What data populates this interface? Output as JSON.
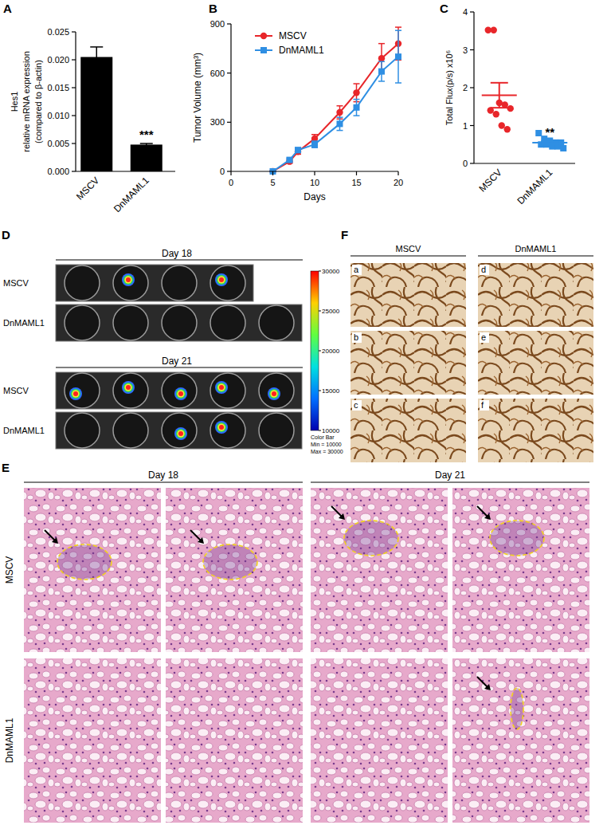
{
  "panel_labels": [
    "A",
    "B",
    "C",
    "D",
    "E",
    "F"
  ],
  "chart_data": [
    {
      "type": "bar",
      "categories": [
        "MSCV",
        "DnMAML1"
      ],
      "values": [
        0.0205,
        0.0048
      ],
      "errors": [
        0.0018,
        0.0002
      ],
      "color": "#000000",
      "ylabel": [
        "Hes1",
        "relative mRNA expression",
        "(compared to β-actin)"
      ],
      "ylim": [
        0,
        0.025
      ],
      "yticks": [
        {
          "value": 0,
          "label": "0.000"
        },
        {
          "value": 0.005,
          "label": "0.005"
        },
        {
          "value": 0.01,
          "label": "0.010"
        },
        {
          "value": 0.015,
          "label": "0.015"
        },
        {
          "value": 0.02,
          "label": "0.020"
        },
        {
          "value": 0.025,
          "label": "0.025"
        }
      ],
      "annotations": [
        {
          "text": "***",
          "category": "DnMAML1"
        }
      ],
      "grid": false
    },
    {
      "type": "line",
      "x": [
        5,
        7,
        8,
        10,
        13,
        15,
        18,
        20
      ],
      "series": [
        {
          "name": "MSCV",
          "color": "#e8262a",
          "marker": "circle",
          "values": [
            0,
            60,
            120,
            200,
            360,
            480,
            690,
            780
          ],
          "errors": [
            0,
            10,
            15,
            25,
            40,
            55,
            90,
            100
          ]
        },
        {
          "name": "DnMAML1",
          "color": "#2f8fe3",
          "marker": "square",
          "values": [
            0,
            70,
            130,
            165,
            290,
            390,
            610,
            700
          ],
          "errors": [
            0,
            10,
            15,
            20,
            40,
            50,
            60,
            160
          ]
        }
      ],
      "xlabel": "Days",
      "ylabel": "Tumor Volume (mm³)",
      "xlim": [
        0,
        20
      ],
      "xticks": [
        0,
        5,
        10,
        15,
        20
      ],
      "ylim": [
        0,
        900
      ],
      "yticks": [
        0,
        300,
        600,
        900
      ],
      "legend": "top-left",
      "grid": false
    },
    {
      "type": "scatter",
      "categories": [
        "MSCV",
        "DnMAML1"
      ],
      "values": [
        [
          3.52,
          3.52,
          1.6,
          1.55,
          1.45,
          1.4,
          1.3,
          1.0,
          0.9
        ],
        [
          0.8,
          0.65,
          0.6,
          0.55,
          0.55,
          0.5,
          0.5,
          0.45,
          0.45,
          0.4
        ]
      ],
      "means": [
        1.8,
        0.545
      ],
      "sems": [
        0.33,
        0.04
      ],
      "colors": [
        "#e8262a",
        "#2f8fe3"
      ],
      "ylabel": "Total Flux(p/s) x10⁶",
      "ylim": [
        0,
        4
      ],
      "yticks": [
        0,
        1,
        2,
        3,
        4
      ],
      "annotations": [
        {
          "text": "**",
          "category": "DnMAML1"
        }
      ],
      "grid": false
    }
  ],
  "bioluminescence": {
    "groups": [
      {
        "title": "Day 18",
        "rows": [
          {
            "label": "MSCV",
            "wells": 4
          },
          {
            "label": "DnMAML1",
            "wells": 5
          }
        ]
      },
      {
        "title": "Day 21",
        "rows": [
          {
            "label": "MSCV",
            "wells": 5
          },
          {
            "label": "DnMAML1",
            "wells": 5
          }
        ]
      }
    ],
    "color_bar": {
      "title": "Color Bar",
      "range": [
        10000,
        30000
      ],
      "ticks": [
        10000,
        15000,
        20000,
        25000,
        30000
      ],
      "min_label": "Min = 10000",
      "max_label": "Max = 30000"
    }
  },
  "histology": {
    "columns": [
      "Day 18",
      "Day 21"
    ],
    "rows": [
      "MSCV",
      "DnMAML1"
    ]
  },
  "immunohistochemistry": {
    "columns": [
      "MSCV",
      "DnMAML1"
    ],
    "labels": [
      [
        "a",
        "b",
        "c"
      ],
      [
        "d",
        "e",
        "f"
      ]
    ]
  }
}
